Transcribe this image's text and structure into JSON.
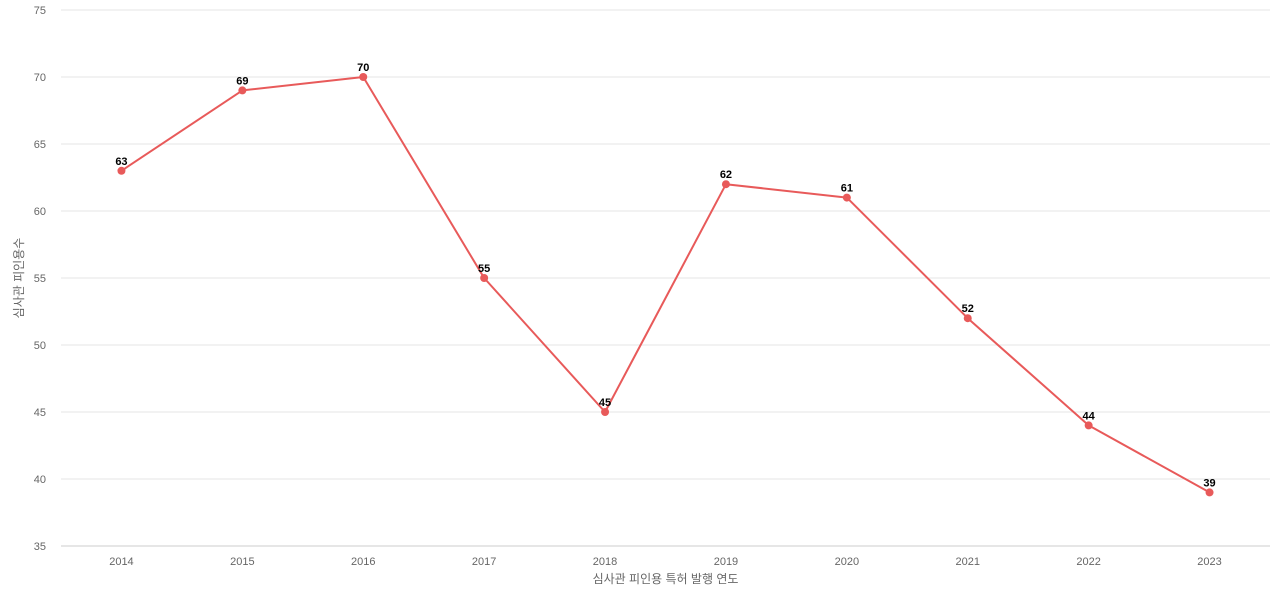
{
  "chart_data": {
    "type": "line",
    "title": "",
    "xlabel": "심사관 피인용 특허 발행 연도",
    "ylabel": "심사관 피인용수",
    "categories": [
      "2014",
      "2015",
      "2016",
      "2017",
      "2018",
      "2019",
      "2020",
      "2021",
      "2022",
      "2023"
    ],
    "series": [
      {
        "values": [
          63,
          69,
          70,
          55,
          45,
          62,
          61,
          52,
          44,
          39
        ],
        "color": "#e85a5a"
      }
    ],
    "ylim": [
      35,
      75
    ],
    "yticks": [
      35,
      40,
      45,
      50,
      55,
      60,
      65,
      70,
      75
    ],
    "grid": true,
    "legend": "none",
    "data_labels": true
  }
}
